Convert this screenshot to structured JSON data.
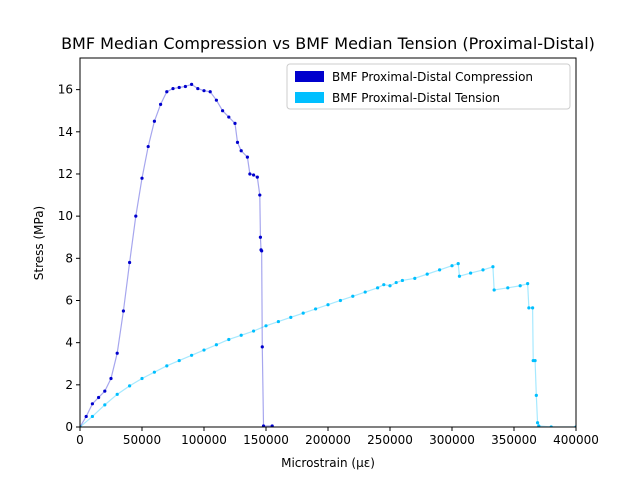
{
  "chart_data": {
    "type": "line",
    "title": "BMF Median Compression vs BMF Median Tension (Proximal-Distal)",
    "xlabel": "Microstrain (με)",
    "ylabel": "Stress (MPa)",
    "xlim": [
      0,
      400000
    ],
    "ylim": [
      0,
      17.5
    ],
    "x_ticks": [
      0,
      50000,
      100000,
      150000,
      200000,
      250000,
      300000,
      350000,
      400000
    ],
    "y_ticks": [
      0,
      2,
      4,
      6,
      8,
      10,
      12,
      14,
      16
    ],
    "x_tick_labels": [
      "0",
      "50000",
      "100000",
      "150000",
      "200000",
      "250000",
      "300000",
      "350000",
      "400000"
    ],
    "y_tick_labels": [
      "0",
      "2",
      "4",
      "6",
      "8",
      "10",
      "12",
      "14",
      "16"
    ],
    "grid": false,
    "legend_position": "top-right",
    "series": [
      {
        "name": "BMF Proximal-Distal Compression",
        "color": "#0000cd",
        "x": [
          0,
          5000,
          10000,
          15000,
          20000,
          25000,
          30000,
          35000,
          40000,
          45000,
          50000,
          55000,
          60000,
          65000,
          70000,
          75000,
          80000,
          85000,
          90000,
          95000,
          100000,
          105000,
          110000,
          115000,
          120000,
          125000,
          127000,
          130000,
          135000,
          137000,
          140000,
          143000,
          145000,
          145500,
          146000,
          146500,
          147000,
          148000,
          155000
        ],
        "y": [
          0,
          0.5,
          1.1,
          1.4,
          1.7,
          2.3,
          3.5,
          5.5,
          7.8,
          10.0,
          11.8,
          13.3,
          14.5,
          15.3,
          15.9,
          16.05,
          16.1,
          16.15,
          16.25,
          16.05,
          15.95,
          15.9,
          15.5,
          15.0,
          14.7,
          14.4,
          13.5,
          13.1,
          12.8,
          12.0,
          11.95,
          11.85,
          11.0,
          9.0,
          8.4,
          8.35,
          3.8,
          0.05,
          0.05
        ]
      },
      {
        "name": "BMF Proximal-Distal Tension",
        "color": "#00bfff",
        "x": [
          0,
          10000,
          20000,
          30000,
          40000,
          50000,
          60000,
          70000,
          80000,
          90000,
          100000,
          110000,
          120000,
          130000,
          140000,
          150000,
          160000,
          170000,
          180000,
          190000,
          200000,
          210000,
          220000,
          230000,
          240000,
          245000,
          250000,
          255000,
          260000,
          270000,
          280000,
          290000,
          300000,
          305000,
          306000,
          315000,
          325000,
          333000,
          334000,
          345000,
          355000,
          361000,
          362000,
          365000,
          365500,
          367000,
          368000,
          369000,
          370000,
          380000,
          400000
        ],
        "y": [
          0,
          0.5,
          1.05,
          1.55,
          1.95,
          2.3,
          2.6,
          2.9,
          3.15,
          3.4,
          3.65,
          3.9,
          4.15,
          4.35,
          4.55,
          4.8,
          5.0,
          5.2,
          5.4,
          5.6,
          5.8,
          6.0,
          6.2,
          6.4,
          6.6,
          6.75,
          6.7,
          6.85,
          6.95,
          7.05,
          7.25,
          7.45,
          7.65,
          7.75,
          7.15,
          7.3,
          7.45,
          7.6,
          6.5,
          6.6,
          6.7,
          6.8,
          5.65,
          5.65,
          3.15,
          3.15,
          1.5,
          0.2,
          0.05,
          0.0,
          0.0
        ]
      }
    ]
  }
}
